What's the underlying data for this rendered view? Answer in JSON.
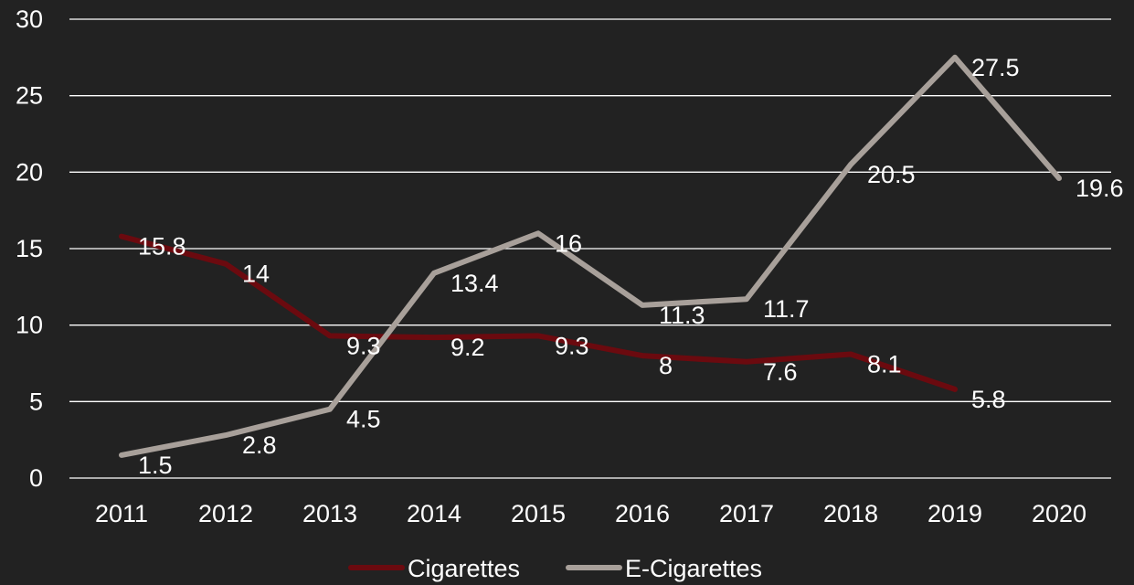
{
  "chart_data": {
    "type": "line",
    "x": [
      "2011",
      "2012",
      "2013",
      "2014",
      "2015",
      "2016",
      "2017",
      "2018",
      "2019",
      "2020"
    ],
    "ylim": [
      0,
      30
    ],
    "yticks": [
      "0",
      "5",
      "10",
      "15",
      "20",
      "25",
      "30"
    ],
    "grid": true,
    "legend_position": "bottom",
    "series": [
      {
        "name": "Cigarettes",
        "color": "#6b0a0f",
        "values": [
          15.8,
          14,
          9.3,
          9.2,
          9.3,
          8,
          7.6,
          8.1,
          5.8,
          null
        ],
        "labels": [
          "15.8",
          "14",
          "9.3",
          "9.2",
          "9.3",
          "8",
          "7.6",
          "8.1",
          "5.8",
          null
        ]
      },
      {
        "name": "E-Cigarettes",
        "color": "#a8a09a",
        "values": [
          1.5,
          2.8,
          4.5,
          13.4,
          16,
          11.3,
          11.7,
          20.5,
          27.5,
          19.6
        ],
        "labels": [
          "1.5",
          "2.8",
          "4.5",
          "13.4",
          "16",
          "11.3",
          "11.7",
          "20.5",
          "27.5",
          "19.6"
        ]
      }
    ]
  }
}
